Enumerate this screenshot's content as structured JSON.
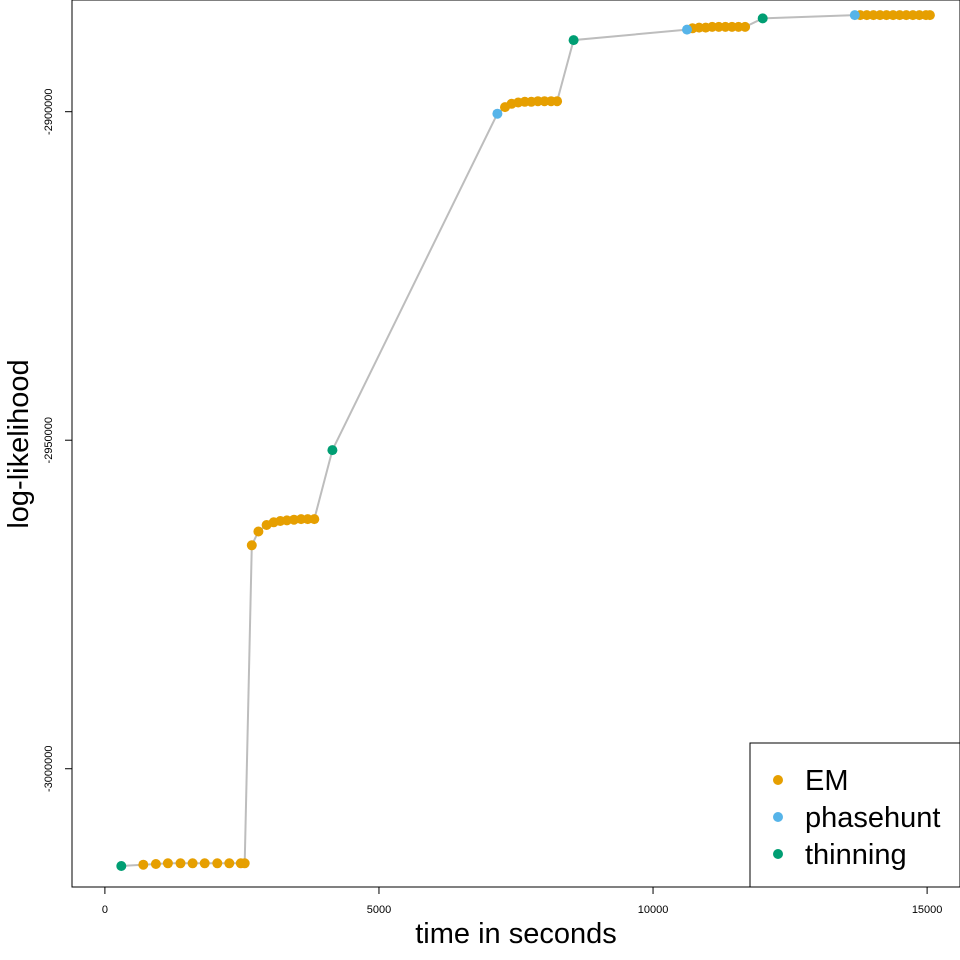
{
  "chart_data": {
    "type": "scatter",
    "title": "",
    "xlabel": "time in seconds",
    "ylabel": "log-likelihood",
    "xlim": [
      -600,
      15600
    ],
    "ylim": [
      -3018000,
      -2883000
    ],
    "xticks": [
      0,
      5000,
      10000,
      15000
    ],
    "yticks": [
      -3000000,
      -2950000,
      -2900000
    ],
    "xtick_labels": [
      "0",
      "5000",
      "10000",
      "15000"
    ],
    "ytick_labels": [
      "-3000000",
      "-2950000",
      "-2900000"
    ],
    "grid": false,
    "connecting_line": true,
    "legend_position": "bottom-right",
    "colors": {
      "EM": "#E69F00",
      "phasehunt": "#56B4E9",
      "thinning": "#009E73",
      "line": "#bdbdbd"
    },
    "series": [
      {
        "name": "EM",
        "color": "#E69F00",
        "points": [
          [
            700,
            -3014600
          ],
          [
            930,
            -3014500
          ],
          [
            1150,
            -3014400
          ],
          [
            1380,
            -3014400
          ],
          [
            1600,
            -3014400
          ],
          [
            1820,
            -3014400
          ],
          [
            2050,
            -3014400
          ],
          [
            2270,
            -3014400
          ],
          [
            2480,
            -3014400
          ],
          [
            2550,
            -3014400
          ],
          [
            2680,
            -2966000
          ],
          [
            2800,
            -2963900
          ],
          [
            2950,
            -2962900
          ],
          [
            3080,
            -2962500
          ],
          [
            3200,
            -2962300
          ],
          [
            3320,
            -2962200
          ],
          [
            3450,
            -2962100
          ],
          [
            3580,
            -2962000
          ],
          [
            3700,
            -2962000
          ],
          [
            3820,
            -2962000
          ],
          [
            7300,
            -2899300
          ],
          [
            7420,
            -2898800
          ],
          [
            7540,
            -2898600
          ],
          [
            7660,
            -2898500
          ],
          [
            7780,
            -2898500
          ],
          [
            7900,
            -2898400
          ],
          [
            8020,
            -2898400
          ],
          [
            8140,
            -2898400
          ],
          [
            8250,
            -2898400
          ],
          [
            10720,
            -2887300
          ],
          [
            10840,
            -2887200
          ],
          [
            10960,
            -2887200
          ],
          [
            11080,
            -2887100
          ],
          [
            11200,
            -2887100
          ],
          [
            11320,
            -2887100
          ],
          [
            11440,
            -2887100
          ],
          [
            11560,
            -2887100
          ],
          [
            11680,
            -2887100
          ],
          [
            13780,
            -2885300
          ],
          [
            13900,
            -2885300
          ],
          [
            14020,
            -2885300
          ],
          [
            14140,
            -2885300
          ],
          [
            14260,
            -2885300
          ],
          [
            14380,
            -2885300
          ],
          [
            14500,
            -2885300
          ],
          [
            14620,
            -2885300
          ],
          [
            14740,
            -2885300
          ],
          [
            14860,
            -2885300
          ],
          [
            14980,
            -2885300
          ],
          [
            15050,
            -2885300
          ]
        ]
      },
      {
        "name": "phasehunt",
        "color": "#56B4E9",
        "points": [
          [
            7160,
            -2900300
          ],
          [
            10620,
            -2887500
          ],
          [
            13680,
            -2885300
          ]
        ]
      },
      {
        "name": "thinning",
        "color": "#009E73",
        "points": [
          [
            300,
            -3014800
          ],
          [
            4150,
            -2951500
          ],
          [
            8550,
            -2889100
          ],
          [
            12000,
            -2885800
          ]
        ]
      }
    ],
    "path": [
      [
        300,
        -3014800
      ],
      [
        700,
        -3014600
      ],
      [
        930,
        -3014500
      ],
      [
        1150,
        -3014400
      ],
      [
        1380,
        -3014400
      ],
      [
        1600,
        -3014400
      ],
      [
        1820,
        -3014400
      ],
      [
        2050,
        -3014400
      ],
      [
        2270,
        -3014400
      ],
      [
        2480,
        -3014400
      ],
      [
        2550,
        -3014400
      ],
      [
        2680,
        -2966000
      ],
      [
        2800,
        -2963900
      ],
      [
        2950,
        -2962900
      ],
      [
        3080,
        -2962500
      ],
      [
        3200,
        -2962300
      ],
      [
        3320,
        -2962200
      ],
      [
        3450,
        -2962100
      ],
      [
        3580,
        -2962000
      ],
      [
        3700,
        -2962000
      ],
      [
        3820,
        -2962000
      ],
      [
        4150,
        -2951500
      ],
      [
        7160,
        -2900300
      ],
      [
        7300,
        -2899300
      ],
      [
        7420,
        -2898800
      ],
      [
        7540,
        -2898600
      ],
      [
        7660,
        -2898500
      ],
      [
        7780,
        -2898500
      ],
      [
        7900,
        -2898400
      ],
      [
        8020,
        -2898400
      ],
      [
        8140,
        -2898400
      ],
      [
        8250,
        -2898400
      ],
      [
        8550,
        -2889100
      ],
      [
        10620,
        -2887500
      ],
      [
        10720,
        -2887300
      ],
      [
        10840,
        -2887200
      ],
      [
        10960,
        -2887200
      ],
      [
        11080,
        -2887100
      ],
      [
        11200,
        -2887100
      ],
      [
        11320,
        -2887100
      ],
      [
        11440,
        -2887100
      ],
      [
        11560,
        -2887100
      ],
      [
        11680,
        -2887100
      ],
      [
        12000,
        -2885800
      ],
      [
        13680,
        -2885300
      ],
      [
        13780,
        -2885300
      ],
      [
        13900,
        -2885300
      ],
      [
        14020,
        -2885300
      ],
      [
        14140,
        -2885300
      ],
      [
        14260,
        -2885300
      ],
      [
        14380,
        -2885300
      ],
      [
        14500,
        -2885300
      ],
      [
        14620,
        -2885300
      ],
      [
        14740,
        -2885300
      ],
      [
        14860,
        -2885300
      ],
      [
        14980,
        -2885300
      ],
      [
        15050,
        -2885300
      ]
    ],
    "legend": [
      {
        "label": "EM",
        "color": "#E69F00"
      },
      {
        "label": "phasehunt",
        "color": "#56B4E9"
      },
      {
        "label": "thinning",
        "color": "#009E73"
      }
    ]
  }
}
